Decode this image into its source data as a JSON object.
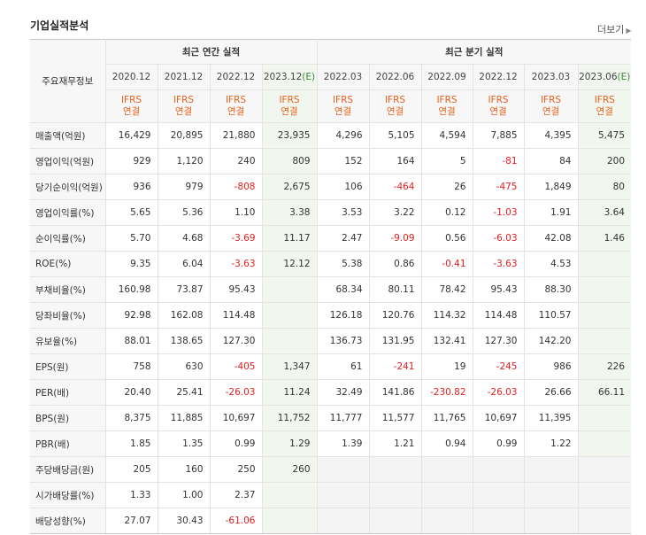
{
  "section": {
    "title": "기업실적분석",
    "more_label": "더보기"
  },
  "header": {
    "row_label": "주요재무정보",
    "annual_group": "최근 연간 실적",
    "quarter_group": "최근 분기 실적",
    "periods": [
      {
        "label": "2020.12",
        "estimate": false
      },
      {
        "label": "2021.12",
        "estimate": false
      },
      {
        "label": "2022.12",
        "estimate": false
      },
      {
        "label": "2023.12",
        "estimate": true,
        "estimate_mark": "(E)"
      },
      {
        "label": "2022.03",
        "estimate": false
      },
      {
        "label": "2022.06",
        "estimate": false
      },
      {
        "label": "2022.09",
        "estimate": false
      },
      {
        "label": "2022.12",
        "estimate": false
      },
      {
        "label": "2023.03",
        "estimate": false
      },
      {
        "label": "2023.06",
        "estimate": true,
        "estimate_mark": "(E)"
      }
    ],
    "ifrs_top": "IFRS",
    "ifrs_bottom": "연결"
  },
  "rows": [
    {
      "label": "매출액(억원)",
      "values": [
        "16,429",
        "20,895",
        "21,880",
        "23,935",
        "4,296",
        "5,105",
        "4,594",
        "7,885",
        "4,395",
        "5,475"
      ]
    },
    {
      "label": "영업이익(억원)",
      "values": [
        "929",
        "1,120",
        "240",
        "809",
        "152",
        "164",
        "5",
        "-81",
        "84",
        "200"
      ]
    },
    {
      "label": "당기순이익(억원)",
      "values": [
        "936",
        "979",
        "-808",
        "2,675",
        "106",
        "-464",
        "26",
        "-475",
        "1,849",
        "80"
      ]
    },
    {
      "label": "영업이익률(%)",
      "values": [
        "5.65",
        "5.36",
        "1.10",
        "3.38",
        "3.53",
        "3.22",
        "0.12",
        "-1.03",
        "1.91",
        "3.64"
      ]
    },
    {
      "label": "순이익률(%)",
      "values": [
        "5.70",
        "4.68",
        "-3.69",
        "11.17",
        "2.47",
        "-9.09",
        "0.56",
        "-6.03",
        "42.08",
        "1.46"
      ]
    },
    {
      "label": "ROE(%)",
      "values": [
        "9.35",
        "6.04",
        "-3.63",
        "12.12",
        "5.38",
        "0.86",
        "-0.41",
        "-3.63",
        "4.53",
        ""
      ]
    },
    {
      "label": "부채비율(%)",
      "values": [
        "160.98",
        "73.87",
        "95.43",
        "",
        "68.34",
        "80.11",
        "78.42",
        "95.43",
        "88.30",
        ""
      ]
    },
    {
      "label": "당좌비율(%)",
      "values": [
        "92.98",
        "162.08",
        "114.48",
        "",
        "126.18",
        "120.76",
        "114.32",
        "114.48",
        "110.57",
        ""
      ]
    },
    {
      "label": "유보율(%)",
      "values": [
        "88.01",
        "138.65",
        "127.30",
        "",
        "136.73",
        "131.95",
        "132.41",
        "127.30",
        "142.20",
        ""
      ]
    },
    {
      "label": "EPS(원)",
      "values": [
        "758",
        "630",
        "-405",
        "1,347",
        "61",
        "-241",
        "19",
        "-245",
        "986",
        "226"
      ]
    },
    {
      "label": "PER(배)",
      "values": [
        "20.40",
        "25.41",
        "-26.03",
        "11.24",
        "32.49",
        "141.86",
        "-230.82",
        "-26.03",
        "26.66",
        "66.11"
      ]
    },
    {
      "label": "BPS(원)",
      "values": [
        "8,375",
        "11,885",
        "10,697",
        "11,752",
        "11,777",
        "11,577",
        "11,765",
        "10,697",
        "11,395",
        ""
      ]
    },
    {
      "label": "PBR(배)",
      "values": [
        "1.85",
        "1.35",
        "0.99",
        "1.29",
        "1.39",
        "1.21",
        "0.94",
        "0.99",
        "1.22",
        ""
      ]
    },
    {
      "label": "주당배당금(원)",
      "values": [
        "205",
        "160",
        "250",
        "260",
        "",
        "",
        "",
        "",
        "",
        ""
      ]
    },
    {
      "label": "시가배당률(%)",
      "values": [
        "1.33",
        "1.00",
        "2.37",
        "",
        "",
        "",
        "",
        "",
        "",
        ""
      ]
    },
    {
      "label": "배당성향(%)",
      "values": [
        "27.07",
        "30.43",
        "-61.06",
        "",
        "",
        "",
        "",
        "",
        "",
        ""
      ]
    }
  ]
}
